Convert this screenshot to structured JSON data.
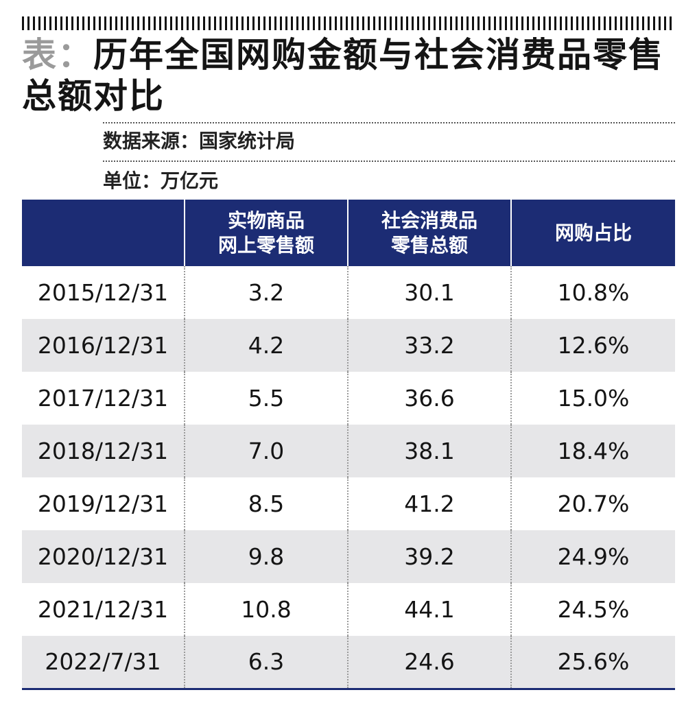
{
  "title": {
    "prefix": "表：",
    "main": "历年全国网购金额与社会消费品零售总额对比"
  },
  "source": "数据来源：国家统计局",
  "unit": "单位：万亿元",
  "table": {
    "headers": [
      [
        ""
      ],
      [
        "实物商品",
        "网上零售额"
      ],
      [
        "社会消费品",
        "零售总额"
      ],
      [
        "网购占比"
      ]
    ],
    "rows": [
      [
        "2015/12/31",
        "3.2",
        "30.1",
        "10.8%"
      ],
      [
        "2016/12/31",
        "4.2",
        "33.2",
        "12.6%"
      ],
      [
        "2017/12/31",
        "5.5",
        "36.6",
        "15.0%"
      ],
      [
        "2018/12/31",
        "7.0",
        "38.1",
        "18.4%"
      ],
      [
        "2019/12/31",
        "8.5",
        "41.2",
        "20.7%"
      ],
      [
        "2020/12/31",
        "9.8",
        "39.2",
        "24.9%"
      ],
      [
        "2021/12/31",
        "10.8",
        "44.1",
        "24.5%"
      ],
      [
        "2022/7/31",
        "6.3",
        "24.6",
        "25.6%"
      ]
    ]
  },
  "colors": {
    "header_bg": "#1c2c74",
    "stripe_bg": "#e6e6e8",
    "title_prefix": "#9a9a9a"
  },
  "chart_data": {
    "type": "table",
    "title": "历年全国网购金额与社会消费品零售总额对比",
    "columns": [
      "",
      "实物商品网上零售额",
      "社会消费品零售总额",
      "网购占比"
    ],
    "rows": [
      [
        "2015/12/31",
        3.2,
        30.1,
        "10.8%"
      ],
      [
        "2016/12/31",
        4.2,
        33.2,
        "12.6%"
      ],
      [
        "2017/12/31",
        5.5,
        36.6,
        "15.0%"
      ],
      [
        "2018/12/31",
        7.0,
        38.1,
        "18.4%"
      ],
      [
        "2019/12/31",
        8.5,
        41.2,
        "20.7%"
      ],
      [
        "2020/12/31",
        9.8,
        39.2,
        "24.9%"
      ],
      [
        "2021/12/31",
        10.8,
        44.1,
        "24.5%"
      ],
      [
        "2022/7/31",
        6.3,
        24.6,
        "25.6%"
      ]
    ]
  }
}
